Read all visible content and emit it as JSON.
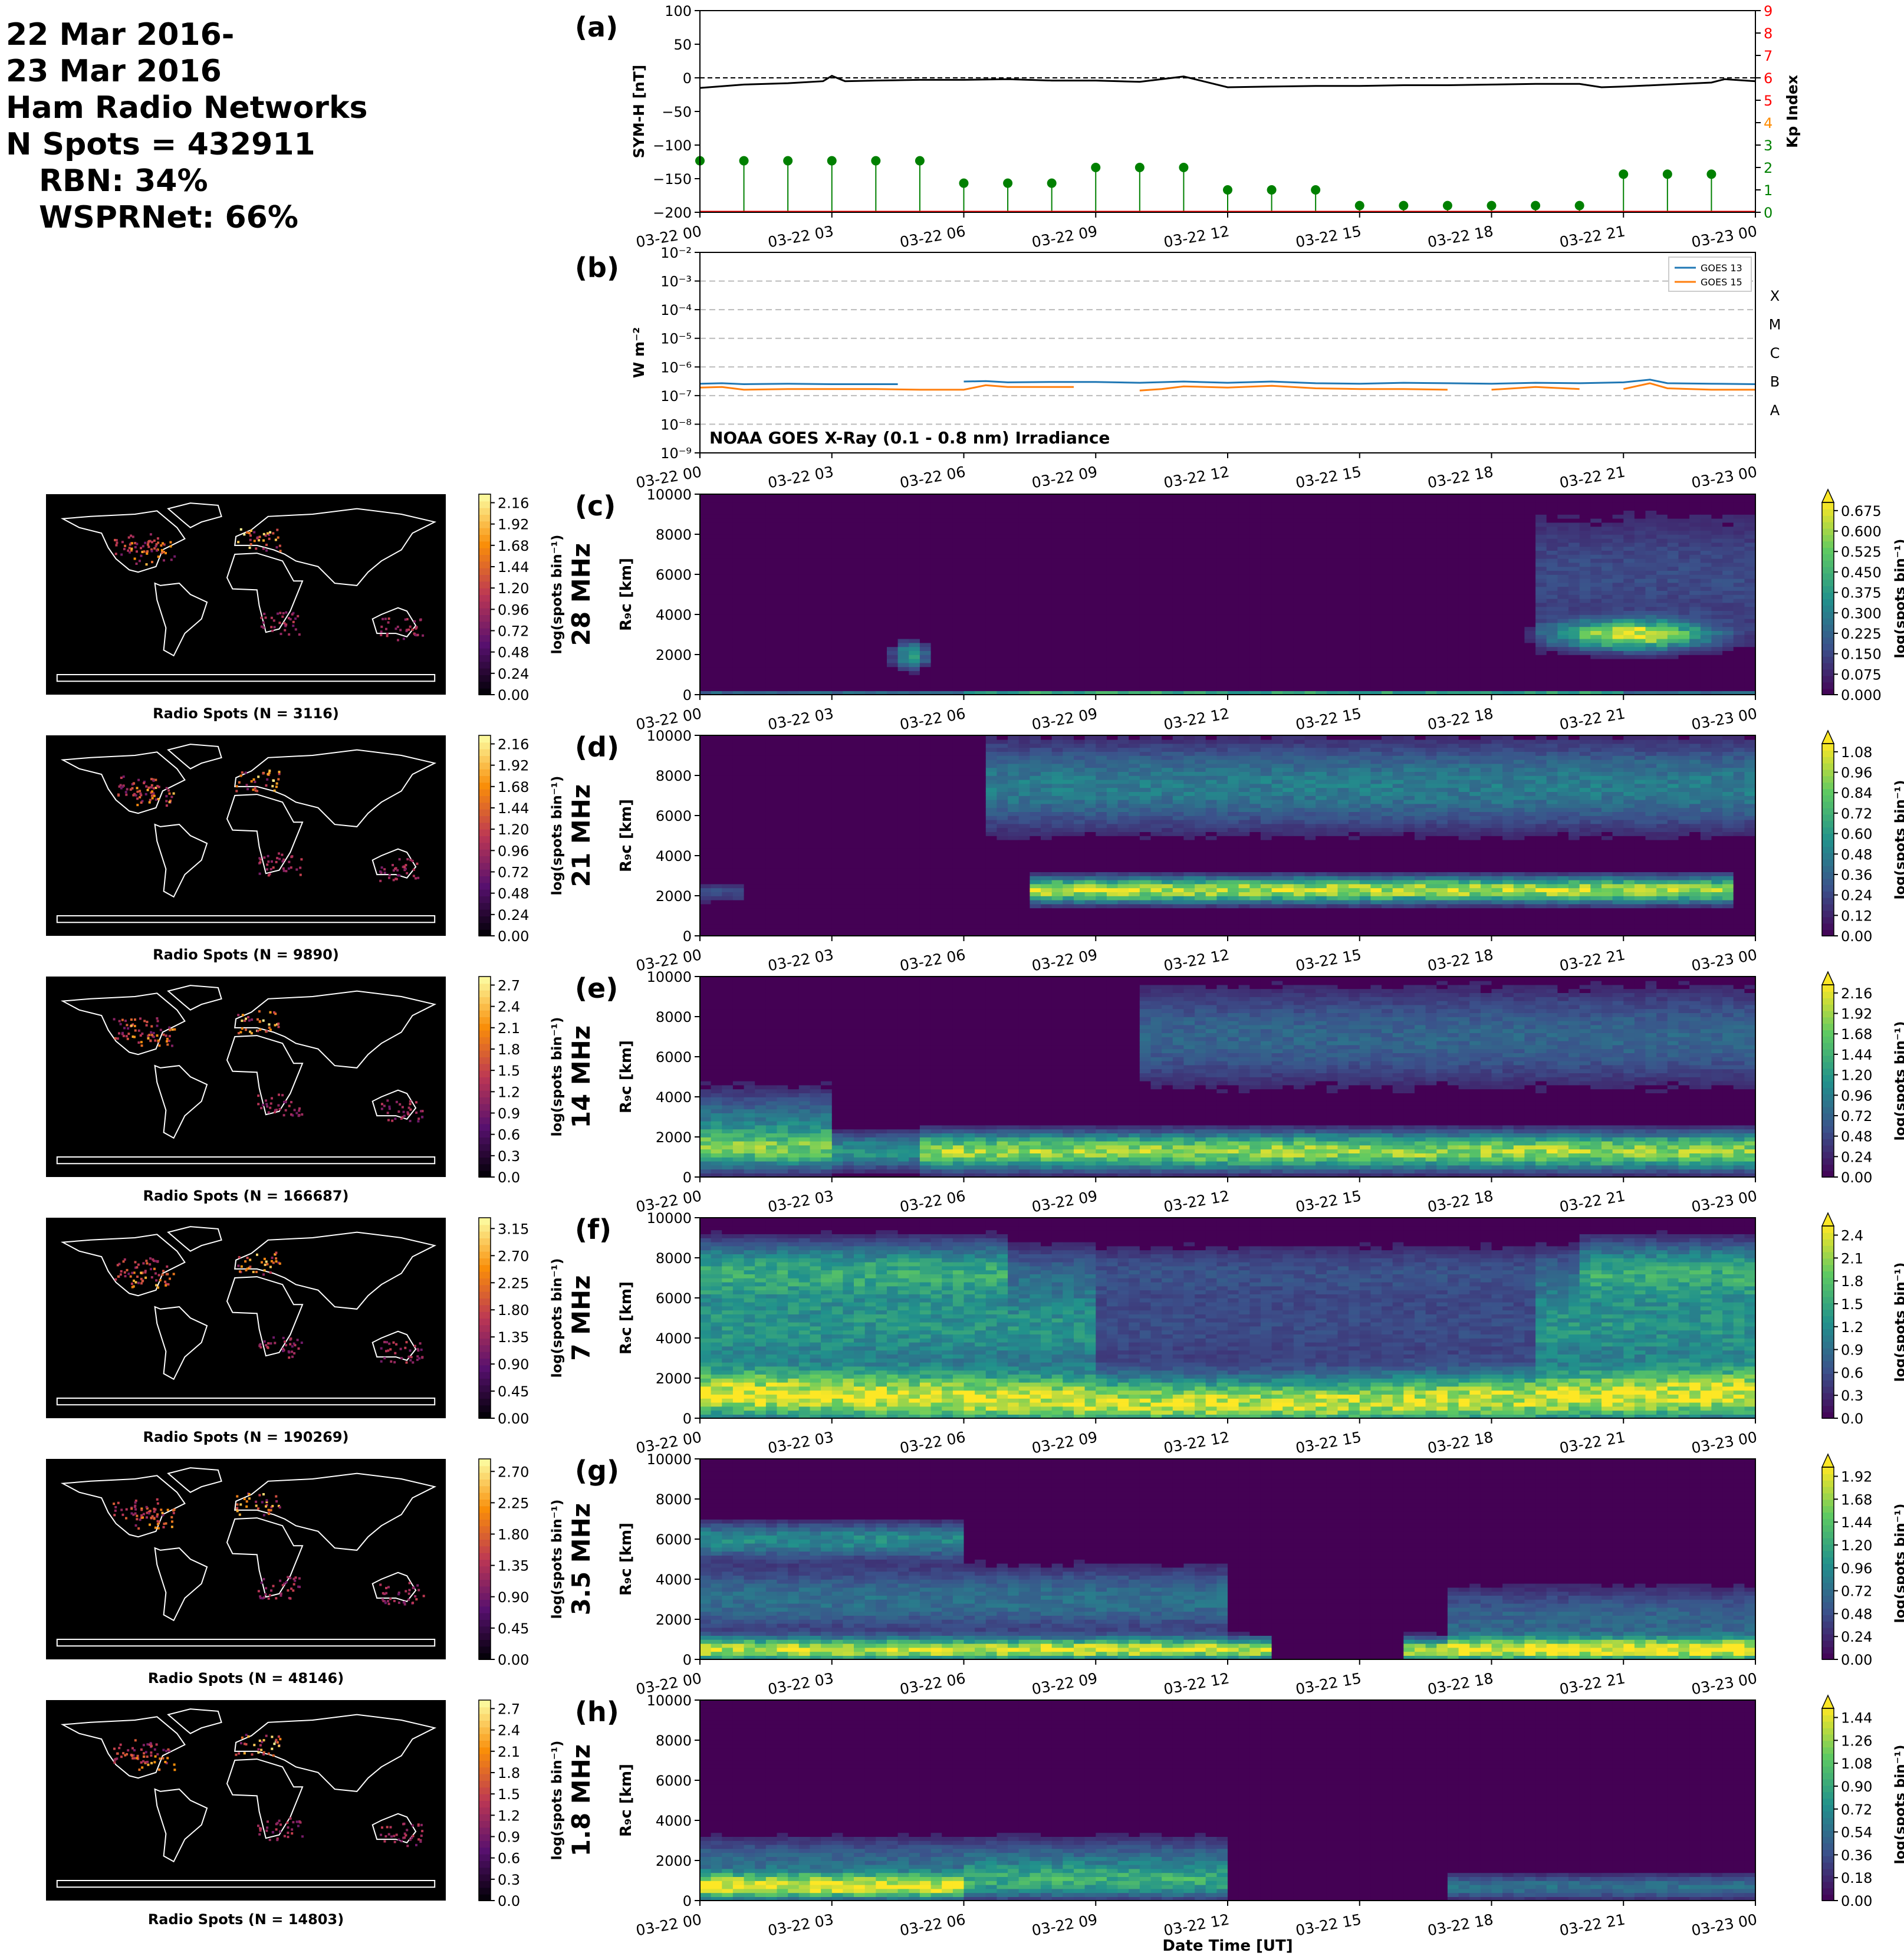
{
  "header": {
    "line1": "22 Mar 2016-",
    "line2": "23 Mar 2016",
    "line3": "Ham Radio Networks",
    "line4": "N Spots = 432911",
    "line5": "RBN: 34%",
    "line6": "WSPRNet: 66%"
  },
  "time_ticks": [
    "03-22 00",
    "03-22 03",
    "03-22 06",
    "03-22 09",
    "03-22 12",
    "03-22 15",
    "03-22 18",
    "03-22 21",
    "03-23 00"
  ],
  "xlabel": "Date Time [UT]",
  "colors": {
    "symh": "#000000",
    "kp_green": "#008000",
    "kp_orange": "#ff8c00",
    "kp_red": "#ff0000",
    "goes13": "#1f77b4",
    "goes15": "#ff7f0e"
  },
  "chart_data": [
    {
      "id": "a",
      "panel_label": "(a)",
      "type": "line",
      "ylabel": "SYM-H [nT]",
      "ylim": [
        -200,
        100
      ],
      "yticks": [
        "100",
        "50",
        "0",
        "−50",
        "−100",
        "−150",
        "−200"
      ],
      "y2label": "Kp Index",
      "y2lim": [
        0,
        9
      ],
      "y2ticks": [
        "0",
        "1",
        "2",
        "3",
        "4",
        "5",
        "6",
        "7",
        "8",
        "9"
      ],
      "symh_x_hours": [
        0,
        1,
        2,
        2.8,
        3,
        3.3,
        4,
        5,
        6,
        7,
        8,
        9,
        10,
        10.5,
        11,
        11.5,
        12,
        13,
        14,
        15,
        16,
        17,
        18,
        19,
        20,
        20.5,
        21,
        22,
        23,
        23.3,
        24
      ],
      "symh_values": [
        -15,
        -10,
        -8,
        -5,
        3,
        -5,
        -4,
        -3,
        -3,
        -2,
        -4,
        -4,
        -6,
        -2,
        2,
        -6,
        -14,
        -13,
        -12,
        -12,
        -11,
        -11,
        -10,
        -9,
        -9,
        -14,
        -13,
        -10,
        -7,
        -2,
        -5
      ],
      "kp_x_hours": [
        0,
        1,
        2,
        3,
        4,
        5,
        6,
        7,
        8,
        9,
        10,
        11,
        12,
        13,
        14,
        15,
        16,
        17,
        18,
        19,
        20,
        21,
        22,
        23
      ],
      "kp_values": [
        2.3,
        2.3,
        2.3,
        2.3,
        2.3,
        2.3,
        1.3,
        1.3,
        1.3,
        2,
        2,
        2,
        1,
        1,
        1,
        0.3,
        0.3,
        0.3,
        0.3,
        0.3,
        0.3,
        1.7,
        1.7,
        1.7
      ]
    },
    {
      "id": "b",
      "panel_label": "(b)",
      "type": "line",
      "yscale": "log",
      "ylabel": "W m⁻²",
      "ylim": [
        1e-09,
        0.01
      ],
      "yticks": [
        "10⁻²",
        "10⁻³",
        "10⁻⁴",
        "10⁻⁵",
        "10⁻⁶",
        "10⁻⁷",
        "10⁻⁸",
        "10⁻⁹"
      ],
      "classes": [
        "X",
        "M",
        "C",
        "B",
        "A"
      ],
      "annotation": "NOAA GOES X-Ray (0.1 - 0.8 nm) Irradiance",
      "series": [
        {
          "name": "GOES 13",
          "x_hours": [
            0,
            0.5,
            1,
            2,
            3,
            4,
            4.5,
            5,
            5.5,
            6,
            6.5,
            7,
            8,
            9,
            10,
            11,
            12,
            13,
            14,
            15,
            16,
            17,
            18,
            19,
            20,
            21,
            21.6,
            22,
            23,
            24
          ],
          "values": [
            2.6e-07,
            2.7e-07,
            2.5e-07,
            2.6e-07,
            2.5e-07,
            2.5e-07,
            2.5e-07,
            null,
            null,
            3.1e-07,
            3.2e-07,
            2.9e-07,
            3e-07,
            3e-07,
            2.8e-07,
            3.1e-07,
            2.8e-07,
            3.1e-07,
            2.7e-07,
            2.6e-07,
            2.8e-07,
            2.7e-07,
            2.6e-07,
            2.8e-07,
            2.7e-07,
            2.9e-07,
            3.6e-07,
            2.7e-07,
            2.6e-07,
            2.5e-07
          ]
        },
        {
          "name": "GOES 15",
          "x_hours": [
            0,
            0.5,
            1,
            2,
            3,
            4,
            5,
            6,
            6.5,
            7,
            8,
            8.5,
            9,
            9.5,
            10,
            10.5,
            11,
            12,
            13,
            14,
            15,
            16,
            17,
            17.5,
            18,
            19,
            20,
            20.5,
            21,
            21.6,
            22,
            23,
            24
          ],
          "values": [
            1.9e-07,
            2e-07,
            1.6e-07,
            1.7e-07,
            1.7e-07,
            1.7e-07,
            1.6e-07,
            1.6e-07,
            2.3e-07,
            2e-07,
            2e-07,
            2e-07,
            null,
            null,
            1.5e-07,
            1.7e-07,
            2.1e-07,
            1.9e-07,
            2.2e-07,
            1.8e-07,
            1.7e-07,
            1.7e-07,
            1.6e-07,
            null,
            1.6e-07,
            2e-07,
            1.7e-07,
            null,
            1.7e-07,
            2.7e-07,
            1.8e-07,
            1.6e-07,
            1.6e-07
          ]
        }
      ]
    },
    {
      "id": "c",
      "panel_label": "(c)",
      "type": "heatmap",
      "band": "28 MHz",
      "ylabel": "R₉c [km]",
      "ylim": [
        0,
        10000
      ],
      "yticks": [
        "0",
        "2000",
        "4000",
        "6000",
        "8000",
        "10000"
      ],
      "cbar_ticks": [
        "0.000",
        "0.075",
        "0.150",
        "0.225",
        "0.300",
        "0.375",
        "0.450",
        "0.525",
        "0.600",
        "0.675"
      ],
      "cbar_label": "log(spots bin⁻¹)",
      "map": {
        "caption": "Radio Spots (N = 3116)",
        "cbar_ticks": [
          "0.00",
          "0.24",
          "0.48",
          "0.72",
          "0.96",
          "1.20",
          "1.44",
          "1.68",
          "1.92",
          "2.16"
        ]
      }
    },
    {
      "id": "d",
      "panel_label": "(d)",
      "type": "heatmap",
      "band": "21 MHz",
      "ylabel": "R₉c [km]",
      "ylim": [
        0,
        10000
      ],
      "yticks": [
        "0",
        "2000",
        "4000",
        "6000",
        "8000",
        "10000"
      ],
      "cbar_ticks": [
        "0.00",
        "0.12",
        "0.24",
        "0.36",
        "0.48",
        "0.60",
        "0.72",
        "0.84",
        "0.96",
        "1.08"
      ],
      "cbar_label": "log(spots bin⁻¹)",
      "map": {
        "caption": "Radio Spots (N = 9890)",
        "cbar_ticks": [
          "0.00",
          "0.24",
          "0.48",
          "0.72",
          "0.96",
          "1.20",
          "1.44",
          "1.68",
          "1.92",
          "2.16"
        ]
      }
    },
    {
      "id": "e",
      "panel_label": "(e)",
      "type": "heatmap",
      "band": "14 MHz",
      "ylabel": "R₉c [km]",
      "ylim": [
        0,
        10000
      ],
      "yticks": [
        "0",
        "2000",
        "4000",
        "6000",
        "8000",
        "10000"
      ],
      "cbar_ticks": [
        "0.00",
        "0.24",
        "0.48",
        "0.72",
        "0.96",
        "1.20",
        "1.44",
        "1.68",
        "1.92",
        "2.16"
      ],
      "cbar_label": "log(spots bin⁻¹)",
      "map": {
        "caption": "Radio Spots (N = 166687)",
        "cbar_ticks": [
          "0.0",
          "0.3",
          "0.6",
          "0.9",
          "1.2",
          "1.5",
          "1.8",
          "2.1",
          "2.4",
          "2.7"
        ]
      }
    },
    {
      "id": "f",
      "panel_label": "(f)",
      "type": "heatmap",
      "band": "7 MHz",
      "ylabel": "R₉c [km]",
      "ylim": [
        0,
        10000
      ],
      "yticks": [
        "0",
        "2000",
        "4000",
        "6000",
        "8000",
        "10000"
      ],
      "cbar_ticks": [
        "0.0",
        "0.3",
        "0.6",
        "0.9",
        "1.2",
        "1.5",
        "1.8",
        "2.1",
        "2.4"
      ],
      "cbar_label": "log(spots bin⁻¹)",
      "map": {
        "caption": "Radio Spots (N = 190269)",
        "cbar_ticks": [
          "0.00",
          "0.45",
          "0.90",
          "1.35",
          "1.80",
          "2.25",
          "2.70",
          "3.15"
        ]
      }
    },
    {
      "id": "g",
      "panel_label": "(g)",
      "type": "heatmap",
      "band": "3.5 MHz",
      "ylabel": "R₉c [km]",
      "ylim": [
        0,
        10000
      ],
      "yticks": [
        "0",
        "2000",
        "4000",
        "6000",
        "8000",
        "10000"
      ],
      "cbar_ticks": [
        "0.00",
        "0.24",
        "0.48",
        "0.72",
        "0.96",
        "1.20",
        "1.44",
        "1.68",
        "1.92"
      ],
      "cbar_label": "log(spots bin⁻¹)",
      "map": {
        "caption": "Radio Spots (N = 48146)",
        "cbar_ticks": [
          "0.00",
          "0.45",
          "0.90",
          "1.35",
          "1.80",
          "2.25",
          "2.70"
        ]
      }
    },
    {
      "id": "h",
      "panel_label": "(h)",
      "type": "heatmap",
      "band": "1.8 MHz",
      "ylabel": "R₉c [km]",
      "ylim": [
        0,
        10000
      ],
      "yticks": [
        "0",
        "2000",
        "4000",
        "6000",
        "8000",
        "10000"
      ],
      "cbar_ticks": [
        "0.00",
        "0.18",
        "0.36",
        "0.54",
        "0.72",
        "0.90",
        "1.08",
        "1.26",
        "1.44"
      ],
      "cbar_label": "log(spots bin⁻¹)",
      "map": {
        "caption": "Radio Spots (N = 14803)",
        "cbar_ticks": [
          "0.0",
          "0.3",
          "0.6",
          "0.9",
          "1.2",
          "1.5",
          "1.8",
          "2.1",
          "2.4",
          "2.7"
        ]
      }
    }
  ]
}
